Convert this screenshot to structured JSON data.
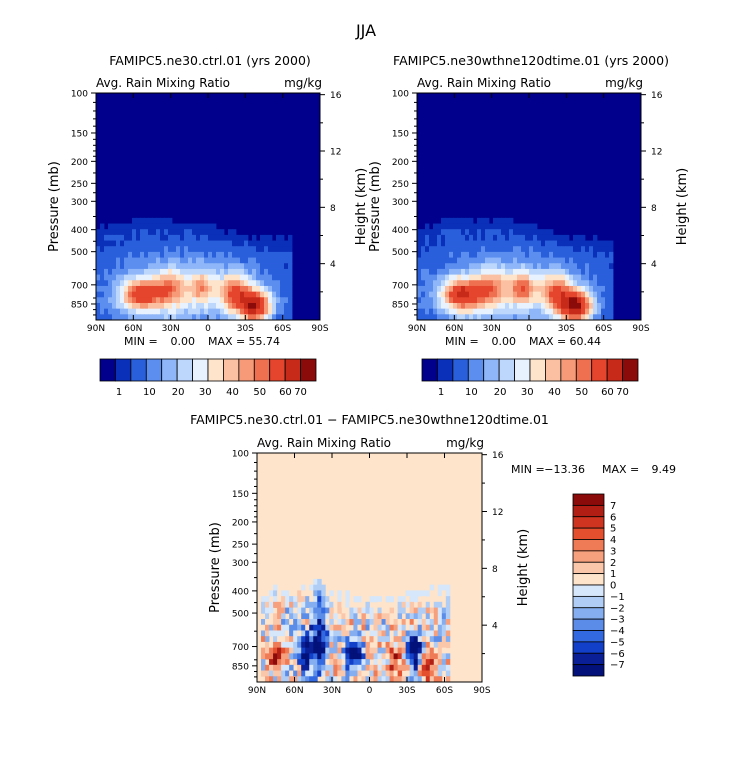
{
  "figure_title": "JJA",
  "colors": {
    "bg": "#ffffff",
    "field_low": "#00008c",
    "diff_zero": "#fde4cb",
    "axis": "#000000"
  },
  "chart_data": [
    {
      "type": "heatmap",
      "title": "FAMIPC5.ne30.ctrl.01 (yrs 2000)",
      "subtitle": "Avg. Rain Mixing Ratio",
      "units": "mg/kg",
      "ylabel": "Pressure (mb)",
      "ylabel_right": "Height (km)",
      "xticks": [
        "90N",
        "60N",
        "30N",
        "0",
        "30S",
        "60S",
        "90S"
      ],
      "yticks": [
        "100",
        "150",
        "200",
        "250",
        "300",
        "400",
        "500",
        "700",
        "850"
      ],
      "y2ticks": [
        "16",
        "12",
        "8",
        "4"
      ],
      "min_label": "MIN =",
      "min_value": "0.00",
      "max_label": "MAX =",
      "max_value": "55.74",
      "ylim": [
        1000,
        100
      ],
      "xlim": [
        "90N",
        "90S"
      ],
      "colorbar": {
        "labels": [
          "1",
          "10",
          "20",
          "30",
          "40",
          "50",
          "60",
          "70"
        ],
        "colors": [
          "#00008c",
          "#0a2fb8",
          "#2a5fdc",
          "#5c8ef0",
          "#8eb6f8",
          "#bcd6fc",
          "#e8f1fe",
          "#fde4cb",
          "#fbc0a2",
          "#f79a78",
          "#ef7050",
          "#e4452c",
          "#c82a1a",
          "#8b0a0a"
        ]
      }
    },
    {
      "type": "heatmap",
      "title": "FAMIPC5.ne30wthne120dtime.01 (yrs 2000)",
      "subtitle": "Avg. Rain Mixing Ratio",
      "units": "mg/kg",
      "ylabel": "Pressure (mb)",
      "ylabel_right": "Height (km)",
      "xticks": [
        "90N",
        "60N",
        "30N",
        "0",
        "30S",
        "60S",
        "90S"
      ],
      "yticks": [
        "100",
        "150",
        "200",
        "250",
        "300",
        "400",
        "500",
        "700",
        "850"
      ],
      "y2ticks": [
        "16",
        "12",
        "8",
        "4"
      ],
      "min_label": "MIN =",
      "min_value": "0.00",
      "max_label": "MAX =",
      "max_value": "60.44",
      "ylim": [
        1000,
        100
      ],
      "xlim": [
        "90N",
        "90S"
      ],
      "colorbar": {
        "labels": [
          "1",
          "10",
          "20",
          "30",
          "40",
          "50",
          "60",
          "70"
        ],
        "colors": [
          "#00008c",
          "#0a2fb8",
          "#2a5fdc",
          "#5c8ef0",
          "#8eb6f8",
          "#bcd6fc",
          "#e8f1fe",
          "#fde4cb",
          "#fbc0a2",
          "#f79a78",
          "#ef7050",
          "#e4452c",
          "#c82a1a",
          "#8b0a0a"
        ]
      }
    },
    {
      "type": "heatmap",
      "title": "FAMIPC5.ne30.ctrl.01 − FAMIPC5.ne30wthne120dtime.01",
      "subtitle": "Avg. Rain Mixing Ratio",
      "units": "mg/kg",
      "ylabel": "Pressure (mb)",
      "ylabel_right": "Height (km)",
      "xticks": [
        "90N",
        "60N",
        "30N",
        "0",
        "30S",
        "60S",
        "90S"
      ],
      "yticks": [
        "100",
        "150",
        "200",
        "250",
        "300",
        "400",
        "500",
        "700",
        "850"
      ],
      "y2ticks": [
        "16",
        "12",
        "8",
        "4"
      ],
      "min_label": "MIN =",
      "min_value": "−13.36",
      "max_label": "MAX =",
      "max_value": "9.49",
      "ylim": [
        1000,
        100
      ],
      "xlim": [
        "90N",
        "90S"
      ],
      "colorbar": {
        "labels": [
          "7",
          "6",
          "5",
          "4",
          "3",
          "2",
          "1",
          "0",
          "−1",
          "−2",
          "−3",
          "−4",
          "−5",
          "−6",
          "−7"
        ],
        "colors": [
          "#8b0a0a",
          "#b01e14",
          "#cf3420",
          "#e4502e",
          "#ef7a56",
          "#f6a07e",
          "#fbc7aa",
          "#fde4cb",
          "#d7e7fb",
          "#b0cdf6",
          "#84aef0",
          "#5b8de8",
          "#3268e0",
          "#1240c8",
          "#0a1e96",
          "#03117a"
        ]
      }
    }
  ]
}
